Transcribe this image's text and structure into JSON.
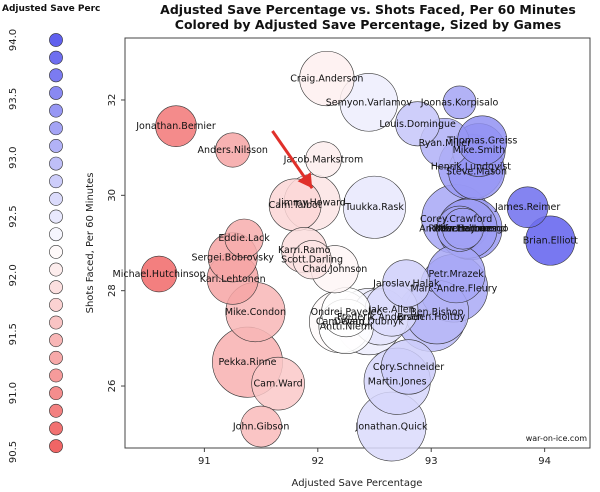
{
  "chart_data": {
    "type": "scatter",
    "title": "Adjusted Save Percentage vs. Shots Faced, Per 60 Minutes",
    "subtitle": "Colored by Adjusted Save Percentage, Sized by Games",
    "xlabel": "Adjusted Save Percentage",
    "ylabel": "Shots Faced, Per 60 Minutes",
    "xlim": [
      90.3,
      94.4
    ],
    "ylim": [
      24.7,
      33.3
    ],
    "x_ticks": [
      91,
      92,
      93,
      94
    ],
    "y_ticks": [
      26,
      28,
      30,
      32
    ],
    "grid": false,
    "credit": "war-on-ice.com",
    "color_scale": {
      "low": "#f06060",
      "mid": "#ffffff",
      "high": "#6060ee",
      "min": 90.5,
      "max": 94.0
    },
    "legend": {
      "title": "Adjusted Save Perc",
      "position": "left",
      "tick_labels": [
        "90.5",
        "91.0",
        "91.5",
        "92.0",
        "92.5",
        "93.0",
        "93.5",
        "94.0"
      ],
      "tick_values": [
        90.5,
        91.0,
        91.5,
        92.0,
        92.5,
        93.0,
        93.5,
        94.0
      ],
      "swatch_values": [
        90.55,
        90.7,
        90.85,
        91.0,
        91.15,
        91.3,
        91.45,
        91.6,
        91.75,
        91.9,
        92.05,
        92.2,
        92.35,
        92.5,
        92.65,
        92.8,
        92.95,
        93.1,
        93.25,
        93.4,
        93.55,
        93.7,
        93.85,
        94.0
      ]
    },
    "annotation": {
      "type": "arrow",
      "from": [
        91.6,
        31.35
      ],
      "to": [
        91.95,
        30.15
      ],
      "color": "#e0302a"
    },
    "points": [
      {
        "name": "Craig.Anderson",
        "x": 92.08,
        "y": 32.45,
        "games": 28
      },
      {
        "name": "Semyon.Varlamov",
        "x": 92.45,
        "y": 31.95,
        "games": 32
      },
      {
        "name": "Joonas.Korpisalo",
        "x": 93.25,
        "y": 31.95,
        "games": 8
      },
      {
        "name": "Jonathan.Bernier",
        "x": 90.75,
        "y": 31.45,
        "games": 14
      },
      {
        "name": "Louis.Domingue",
        "x": 92.88,
        "y": 31.5,
        "games": 17
      },
      {
        "name": "Ryan.Miller",
        "x": 93.12,
        "y": 31.1,
        "games": 22
      },
      {
        "name": "Thomas.Greiss",
        "x": 93.45,
        "y": 31.15,
        "games": 22
      },
      {
        "name": "Mike.Smith",
        "x": 93.42,
        "y": 30.95,
        "games": 26
      },
      {
        "name": "Anders.Nilsson",
        "x": 91.25,
        "y": 30.95,
        "games": 9
      },
      {
        "name": "Henrik.Lundqvist",
        "x": 93.35,
        "y": 30.6,
        "games": 42
      },
      {
        "name": "Jacob.Markstrom",
        "x": 92.05,
        "y": 30.75,
        "games": 10
      },
      {
        "name": "Steve.Mason",
        "x": 93.4,
        "y": 30.5,
        "games": 30
      },
      {
        "name": "Jimmy.Howard",
        "x": 91.95,
        "y": 29.85,
        "games": 30
      },
      {
        "name": "Cam.Talbot",
        "x": 91.8,
        "y": 29.8,
        "games": 25
      },
      {
        "name": "Tuukka.Rask",
        "x": 92.5,
        "y": 29.75,
        "games": 38
      },
      {
        "name": "James.Reimer",
        "x": 93.85,
        "y": 29.75,
        "games": 14
      },
      {
        "name": "Corey.Crawford",
        "x": 93.22,
        "y": 29.5,
        "games": 48
      },
      {
        "name": "Robin.Lehner",
        "x": 93.25,
        "y": 29.3,
        "games": 18
      },
      {
        "name": "Andrew.Hammond",
        "x": 93.28,
        "y": 29.3,
        "games": 14
      },
      {
        "name": "Martin.Jones",
        "x": 93.32,
        "y": 29.3,
        "games": 34
      },
      {
        "name": "Roberto.Luongo",
        "x": 93.35,
        "y": 29.3,
        "games": 38
      },
      {
        "name": "Brian.Elliott",
        "x": 94.05,
        "y": 29.05,
        "games": 22
      },
      {
        "name": "Eddie.Lack",
        "x": 91.35,
        "y": 29.1,
        "games": 12
      },
      {
        "name": "Karri.Ramo",
        "x": 91.88,
        "y": 28.85,
        "games": 18
      },
      {
        "name": "Scott.Darling",
        "x": 91.95,
        "y": 28.65,
        "games": 12
      },
      {
        "name": "Sergei.Bobrovsky",
        "x": 91.25,
        "y": 28.7,
        "games": 22
      },
      {
        "name": "Chad.Johnson",
        "x": 92.15,
        "y": 28.45,
        "games": 20
      },
      {
        "name": "Petr.Mrazek",
        "x": 93.22,
        "y": 28.35,
        "games": 32
      },
      {
        "name": "Michael.Hutchinson",
        "x": 90.6,
        "y": 28.35,
        "games": 10
      },
      {
        "name": "Kari.Lehtonen",
        "x": 91.25,
        "y": 28.25,
        "games": 24
      },
      {
        "name": "Jaroslav.Halak",
        "x": 92.78,
        "y": 28.15,
        "games": 20
      },
      {
        "name": "Marc-Andre.Fleury",
        "x": 93.2,
        "y": 28.05,
        "games": 46
      },
      {
        "name": "Mike.Condon",
        "x": 91.45,
        "y": 27.55,
        "games": 34
      },
      {
        "name": "Ondrej.Pavelec",
        "x": 92.25,
        "y": 27.55,
        "games": 22
      },
      {
        "name": "Jake.Allen",
        "x": 92.65,
        "y": 27.6,
        "games": 26
      },
      {
        "name": "Ben.Bishop",
        "x": 93.05,
        "y": 27.55,
        "games": 40
      },
      {
        "name": "Frederik.Andersen",
        "x": 92.55,
        "y": 27.45,
        "games": 30
      },
      {
        "name": "Braden.Holtby",
        "x": 93.0,
        "y": 27.45,
        "games": 48
      },
      {
        "name": "Cam.Ward",
        "x": 92.2,
        "y": 27.35,
        "games": 38
      },
      {
        "name": "Devan.Dubnyk",
        "x": 92.45,
        "y": 27.35,
        "games": 44
      },
      {
        "name": "Antti.Niemi",
        "x": 92.25,
        "y": 27.25,
        "games": 28
      },
      {
        "name": "Pekka.Rinne",
        "x": 91.38,
        "y": 26.5,
        "games": 50
      },
      {
        "name": "Cory.Schneider",
        "x": 92.8,
        "y": 26.4,
        "games": 28
      },
      {
        "name": "Cam.Ward",
        "x": 91.65,
        "y": 26.05,
        "games": 26
      },
      {
        "name": "Martin.Jones",
        "x": 92.7,
        "y": 26.1,
        "games": 44
      },
      {
        "name": "John.Gibson",
        "x": 91.5,
        "y": 25.15,
        "games": 14
      },
      {
        "name": "Jonathan.Quick",
        "x": 92.65,
        "y": 25.15,
        "games": 48
      }
    ],
    "point_colors_by": "x"
  }
}
